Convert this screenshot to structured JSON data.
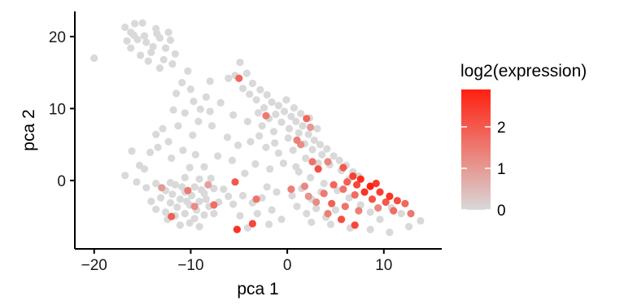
{
  "chart_data": {
    "type": "scatter",
    "title": "",
    "xlabel": "pca 1",
    "ylabel": "pca 2",
    "xlim": [
      -22,
      16
    ],
    "ylim": [
      -9.5,
      23.5
    ],
    "xticks": [
      -20,
      -10,
      0,
      10
    ],
    "yticks": [
      0,
      10,
      20
    ],
    "xtick_labels": [
      "−20",
      "−10",
      "0",
      "10"
    ],
    "ytick_labels": [
      "0",
      "10",
      "20"
    ],
    "grid": false,
    "legend": {
      "title": "log2(expression)",
      "type": "colorbar",
      "placement": "right",
      "range": [
        0,
        2.9
      ],
      "ticks": [
        0,
        1,
        2
      ],
      "tick_labels": [
        "0",
        "1",
        "2"
      ],
      "low_color": "#d9d9d9",
      "high_color": "#ff2010"
    },
    "series": [
      {
        "points": [
          [
            -20.0,
            17.0,
            0
          ],
          [
            -16.8,
            21.3,
            0
          ],
          [
            -16.2,
            20.6,
            0
          ],
          [
            -15.8,
            21.8,
            0
          ],
          [
            -15.0,
            21.9,
            0
          ],
          [
            -14.6,
            19.2,
            0
          ],
          [
            -13.9,
            18.6,
            0
          ],
          [
            -13.2,
            19.8,
            0
          ],
          [
            -12.6,
            18.4,
            0
          ],
          [
            -12.1,
            19.5,
            0
          ],
          [
            -13.5,
            20.4,
            0
          ],
          [
            -14.8,
            20.1,
            0
          ],
          [
            -15.5,
            19.6,
            0
          ],
          [
            -16.2,
            18.4,
            0
          ],
          [
            -12.8,
            16.8,
            0
          ],
          [
            -14.4,
            16.6,
            0
          ],
          [
            -11.6,
            17.6,
            0
          ],
          [
            -13.2,
            15.6,
            0
          ],
          [
            -15.2,
            17.4,
            0
          ],
          [
            -12.3,
            20.6,
            0
          ],
          [
            -14.1,
            17.8,
            0
          ],
          [
            -11.9,
            16.2,
            0
          ],
          [
            -16.6,
            19.4,
            0
          ],
          [
            -13.6,
            21.1,
            0
          ],
          [
            -15.9,
            20.2,
            0
          ],
          [
            -10.3,
            15.2,
            0
          ],
          [
            -10.9,
            13.6,
            0
          ],
          [
            -11.5,
            12.1,
            0
          ],
          [
            -9.7,
            11.0,
            0
          ],
          [
            -10.6,
            9.4,
            0
          ],
          [
            -11.3,
            7.6,
            0
          ],
          [
            -12.3,
            5.4,
            0
          ],
          [
            -13.4,
            4.6,
            0
          ],
          [
            -12.0,
            3.1,
            0
          ],
          [
            -10.8,
            4.2,
            0
          ],
          [
            -9.8,
            6.3,
            0
          ],
          [
            -9.2,
            8.2,
            0
          ],
          [
            -8.4,
            11.6,
            0
          ],
          [
            -8.0,
            13.8,
            0
          ],
          [
            -10.0,
            12.7,
            0
          ],
          [
            -11.8,
            9.8,
            0
          ],
          [
            -12.9,
            7.2,
            0
          ],
          [
            -14.2,
            3.9,
            0
          ],
          [
            -15.3,
            2.1,
            0
          ],
          [
            -16.8,
            0.7,
            0
          ],
          [
            -16.1,
            4.1,
            0
          ],
          [
            -14.8,
            1.6,
            0
          ],
          [
            -13.6,
            6.4,
            0
          ],
          [
            -9.5,
            3.6,
            0
          ],
          [
            -10.1,
            1.8,
            0
          ],
          [
            -4.9,
            16.4,
            0
          ],
          [
            -5.4,
            14.6,
            0
          ],
          [
            -6.1,
            14.2,
            0
          ],
          [
            -4.2,
            14.9,
            0
          ],
          [
            -3.6,
            13.5,
            0
          ],
          [
            -4.6,
            12.8,
            0
          ],
          [
            -2.8,
            12.6,
            0
          ],
          [
            -2.1,
            11.9,
            0
          ],
          [
            -3.2,
            11.2,
            0
          ],
          [
            -1.6,
            10.9,
            0
          ],
          [
            -0.9,
            10.4,
            0
          ],
          [
            -2.4,
            10.1,
            0
          ],
          [
            -1.2,
            9.2,
            0
          ],
          [
            -0.3,
            9.6,
            0
          ],
          [
            0.4,
            8.9,
            0
          ],
          [
            -0.6,
            8.1,
            0
          ],
          [
            0.9,
            8.2,
            0
          ],
          [
            1.6,
            7.6,
            0
          ],
          [
            0.2,
            7.2,
            0
          ],
          [
            1.2,
            6.6,
            0
          ],
          [
            2.2,
            6.4,
            0
          ],
          [
            2.8,
            5.6,
            0
          ],
          [
            1.8,
            5.1,
            0
          ],
          [
            3.4,
            5.0,
            0
          ],
          [
            2.6,
            4.3,
            0
          ],
          [
            4.1,
            4.4,
            0
          ],
          [
            3.6,
            3.6,
            0
          ],
          [
            4.8,
            3.4,
            0
          ],
          [
            5.4,
            2.8,
            0
          ],
          [
            4.4,
            2.2,
            0
          ],
          [
            6.1,
            2.1,
            0
          ],
          [
            5.6,
            1.4,
            0
          ],
          [
            6.8,
            1.2,
            0
          ],
          [
            7.4,
            0.6,
            0
          ],
          [
            6.4,
            0.2,
            0
          ],
          [
            -3.9,
            12.0,
            0
          ],
          [
            -3.0,
            9.4,
            0
          ],
          [
            -1.9,
            8.6,
            0
          ],
          [
            -0.1,
            11.2,
            0
          ],
          [
            0.7,
            10.1,
            0
          ],
          [
            1.4,
            9.3,
            0
          ],
          [
            2.3,
            8.7,
            0
          ],
          [
            3.1,
            7.2,
            0
          ],
          [
            -2.6,
            7.6,
            0
          ],
          [
            -1.4,
            6.8,
            0
          ],
          [
            -4.1,
            8.2,
            0
          ],
          [
            -5.6,
            9.1,
            0
          ],
          [
            -6.9,
            10.8,
            0
          ],
          [
            -7.8,
            7.6,
            0
          ],
          [
            -6.2,
            6.0,
            0
          ],
          [
            -5.1,
            4.9,
            0
          ],
          [
            -3.8,
            5.4,
            0
          ],
          [
            -2.2,
            4.6,
            0
          ],
          [
            -0.9,
            3.8,
            0
          ],
          [
            0.6,
            4.2,
            0
          ],
          [
            1.9,
            3.1,
            0
          ],
          [
            0.9,
            1.9,
            0
          ],
          [
            -0.4,
            2.4,
            0
          ],
          [
            -1.8,
            1.6,
            0
          ],
          [
            -3.3,
            2.3,
            0
          ],
          [
            -4.4,
            1.0,
            0
          ],
          [
            -5.7,
            2.8,
            0
          ],
          [
            -7.2,
            3.4,
            0
          ],
          [
            -8.6,
            1.9,
            0
          ],
          [
            -7.9,
            0.3,
            0
          ],
          [
            -15.6,
            -0.2,
            0
          ],
          [
            -14.6,
            -1.0,
            0
          ],
          [
            -13.6,
            -0.4,
            0
          ],
          [
            -12.6,
            -1.4,
            0
          ],
          [
            -11.6,
            -0.6,
            0
          ],
          [
            -10.6,
            -1.6,
            0
          ],
          [
            -9.6,
            -0.9,
            0
          ],
          [
            -8.6,
            -1.8,
            0
          ],
          [
            -7.6,
            -1.1,
            0
          ],
          [
            -13.1,
            -2.4,
            0
          ],
          [
            -12.1,
            -3.1,
            0
          ],
          [
            -11.1,
            -2.6,
            0
          ],
          [
            -10.1,
            -3.4,
            0
          ],
          [
            -9.1,
            -2.9,
            0
          ],
          [
            -8.1,
            -3.6,
            0
          ],
          [
            -7.1,
            -3.0,
            0
          ],
          [
            -6.1,
            -2.2,
            0
          ],
          [
            -12.6,
            -4.4,
            0
          ],
          [
            -11.6,
            -4.9,
            0
          ],
          [
            -10.6,
            -4.6,
            0
          ],
          [
            -9.6,
            -5.3,
            0
          ],
          [
            -8.6,
            -4.8,
            0
          ],
          [
            -10.1,
            -5.9,
            0
          ],
          [
            -11.1,
            -6.2,
            0
          ],
          [
            -9.1,
            -6.4,
            0
          ],
          [
            -14.1,
            -2.9,
            0
          ],
          [
            -13.6,
            -4.0,
            0
          ],
          [
            -12.1,
            -0.3,
            0
          ],
          [
            -10.6,
            0.4,
            0
          ],
          [
            -9.1,
            0.2,
            0
          ],
          [
            -11.9,
            -1.9,
            0
          ],
          [
            -10.9,
            -0.9,
            0
          ],
          [
            -9.9,
            -2.1,
            0
          ],
          [
            -8.9,
            -1.3,
            0
          ],
          [
            -11.4,
            -3.7,
            0
          ],
          [
            -10.4,
            -2.9,
            0
          ],
          [
            -9.4,
            -4.1,
            0
          ],
          [
            -8.4,
            -2.6,
            0
          ],
          [
            -12.4,
            -5.4,
            0
          ],
          [
            -7.6,
            -4.6,
            0
          ],
          [
            -6.6,
            -1.2,
            0
          ],
          [
            -5.6,
            -3.3,
            0
          ],
          [
            -4.6,
            -2.1,
            0
          ],
          [
            -3.6,
            -3.1,
            0
          ],
          [
            -2.6,
            -2.4,
            0
          ],
          [
            -1.6,
            -4.1,
            0
          ],
          [
            -3.1,
            -4.6,
            0
          ],
          [
            -4.9,
            -4.9,
            0
          ],
          [
            -2.1,
            -0.9,
            0
          ],
          [
            -1.1,
            -1.6,
            0
          ],
          [
            -0.6,
            -5.4,
            0
          ],
          [
            -1.9,
            -6.1,
            0
          ],
          [
            -4.1,
            -6.6,
            0
          ],
          [
            0.5,
            -2.1,
            0
          ],
          [
            1.5,
            -1.1,
            0
          ],
          [
            2.5,
            -2.6,
            0
          ],
          [
            3.5,
            -1.6,
            0
          ],
          [
            1.0,
            -3.6,
            0
          ],
          [
            2.0,
            -4.6,
            0
          ],
          [
            3.0,
            -3.9,
            0
          ],
          [
            4.0,
            -5.1,
            0
          ],
          [
            5.0,
            -4.1,
            0
          ],
          [
            2.5,
            -5.8,
            0
          ],
          [
            4.5,
            -6.1,
            0
          ],
          [
            6.5,
            -6.6,
            0
          ],
          [
            3.8,
            -0.4,
            0
          ],
          [
            5.2,
            -1.4,
            0
          ],
          [
            6.4,
            -2.4,
            0
          ],
          [
            7.6,
            -3.4,
            0
          ],
          [
            8.6,
            -4.4,
            0
          ],
          [
            9.6,
            -5.4,
            0
          ],
          [
            10.8,
            -3.8,
            0
          ],
          [
            11.8,
            -4.6,
            0
          ],
          [
            13.8,
            -5.6,
            0
          ],
          [
            12.6,
            -6.4,
            0
          ],
          [
            10.6,
            -7.2,
            0
          ],
          [
            8.6,
            -6.8,
            0
          ],
          [
            1.2,
            1.2,
            0
          ],
          [
            2.4,
            0.4,
            0
          ],
          [
            3.2,
            2.4,
            0
          ],
          [
            -1.3,
            5.2,
            0
          ],
          [
            -2.9,
            6.2,
            0
          ],
          [
            0.1,
            5.9,
            0
          ],
          [
            -8.0,
            9.6,
            0
          ],
          [
            -9.0,
            9.9,
            0
          ],
          [
            2.0,
            8.6,
            1.8
          ],
          [
            1.0,
            5.6,
            1.4
          ],
          [
            2.6,
            2.6,
            1.6
          ],
          [
            4.2,
            2.6,
            1.3
          ],
          [
            3.2,
            1.6,
            2.2
          ],
          [
            5.8,
            1.8,
            2.0
          ],
          [
            6.8,
            0.6,
            2.4
          ],
          [
            7.6,
            0.2,
            2.7
          ],
          [
            8.6,
            -0.8,
            2.9
          ],
          [
            9.2,
            -0.4,
            2.5
          ],
          [
            7.2,
            -0.6,
            2.3
          ],
          [
            6.2,
            -0.2,
            1.9
          ],
          [
            8.0,
            -1.6,
            2.6
          ],
          [
            9.6,
            -1.6,
            2.4
          ],
          [
            10.6,
            -2.2,
            2.6
          ],
          [
            11.4,
            -2.8,
            2.2
          ],
          [
            12.2,
            -3.2,
            1.8
          ],
          [
            10.2,
            -3.0,
            2.0
          ],
          [
            8.8,
            -2.6,
            2.1
          ],
          [
            7.0,
            -2.0,
            1.7
          ],
          [
            5.8,
            -1.2,
            1.6
          ],
          [
            4.8,
            -0.6,
            1.8
          ],
          [
            3.8,
            -1.8,
            1.5
          ],
          [
            4.6,
            -3.2,
            1.9
          ],
          [
            6.0,
            -3.6,
            1.6
          ],
          [
            7.4,
            -4.2,
            1.4
          ],
          [
            9.4,
            -3.8,
            1.3
          ],
          [
            11.0,
            -4.2,
            1.7
          ],
          [
            12.8,
            -4.6,
            1.5
          ],
          [
            5.6,
            -5.4,
            2.2
          ],
          [
            7.0,
            -6.2,
            2.3
          ],
          [
            4.2,
            -4.6,
            1.4
          ],
          [
            3.0,
            -3.0,
            1.2
          ],
          [
            1.8,
            -0.8,
            1.3
          ],
          [
            2.2,
            -2.2,
            1.1
          ],
          [
            -12.0,
            -5.0,
            1.9
          ],
          [
            -10.3,
            -1.4,
            1.5
          ],
          [
            -9.6,
            -3.6,
            1.2
          ],
          [
            -8.2,
            -0.6,
            0.9
          ],
          [
            -7.6,
            -3.4,
            1.7
          ],
          [
            -13.0,
            -1.0,
            1.0
          ],
          [
            -5.4,
            -0.2,
            2.0
          ],
          [
            -3.6,
            -6.0,
            2.3
          ],
          [
            -5.2,
            -6.8,
            2.6
          ],
          [
            -3.2,
            -2.6,
            1.6
          ],
          [
            0.4,
            -1.2,
            1.4
          ],
          [
            1.4,
            5.0,
            1.2
          ],
          [
            -2.2,
            9.0,
            1.5
          ],
          [
            -5.0,
            14.2,
            1.8
          ],
          [
            2.4,
            7.4,
            1.0
          ]
        ]
      }
    ]
  }
}
